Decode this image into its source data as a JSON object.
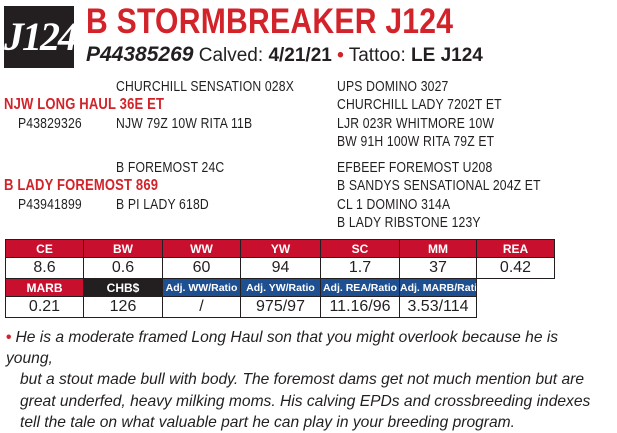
{
  "lot": {
    "number": "J124"
  },
  "animal": {
    "name": "B STORMBREAKER J124",
    "registration": "P44385269",
    "calved_label": "Calved:",
    "calved": "4/21/21",
    "separator": "•",
    "tattoo_label": "Tattoo:",
    "tattoo": "LE J124"
  },
  "pedigree": {
    "sire_sire": "CHURCHILL SENSATION 028X",
    "sire_sire_sire": "UPS DOMINO 3027",
    "sire_sire_dam": "CHURCHILL LADY 7202T ET",
    "sire": "NJW LONG HAUL 36E ET",
    "sire_reg": "P43829326",
    "sire_dam": "NJW 79Z 10W RITA 11B",
    "sire_dam_sire": "LJR 023R WHITMORE 10W",
    "sire_dam_dam": "BW 91H 100W RITA 79Z ET",
    "dam_sire": "B FOREMOST 24C",
    "dam_sire_sire": "EFBEEF FOREMOST U208",
    "dam_sire_dam": "B SANDYS SENSATIONAL 204Z ET",
    "dam": "B LADY FOREMOST 869",
    "dam_reg": "P43941899",
    "dam_dam": "B PI LADY 618D",
    "dam_dam_sire": "CL 1 DOMINO 314A",
    "dam_dam_dam": "B LADY RIBSTONE 123Y"
  },
  "epd_row1": {
    "headers": [
      "CE",
      "BW",
      "WW",
      "YW",
      "SC",
      "MM",
      "REA"
    ],
    "values": [
      "8.6",
      "0.6",
      "60",
      "94",
      "1.7",
      "37",
      "0.42"
    ]
  },
  "epd_row2": {
    "headers": [
      "MARB",
      "CHB$",
      "Adj. WW/Ratio",
      "Adj. YW/Ratio",
      "Adj. REA/Ratio",
      "Adj. MARB/Ratio"
    ],
    "values": [
      "0.21",
      "126",
      "/",
      "975/97",
      "11.16/96",
      "3.53/114"
    ]
  },
  "colors": {
    "accent_red": "#d2232a",
    "header_red": "#c8102e",
    "header_blue": "#1d4f91",
    "dark": "#231f20"
  },
  "description": {
    "bullet": "•",
    "lines": [
      "He is a moderate framed Long Haul son that you might overlook because he is young,",
      "but a stout made bull with body. The foremost dams get not much mention but are",
      "great underfed, heavy milking moms. His calving EPDs and crossbreeding indexes",
      "tell the tale on what valuable part he can play in your breeding program."
    ]
  }
}
